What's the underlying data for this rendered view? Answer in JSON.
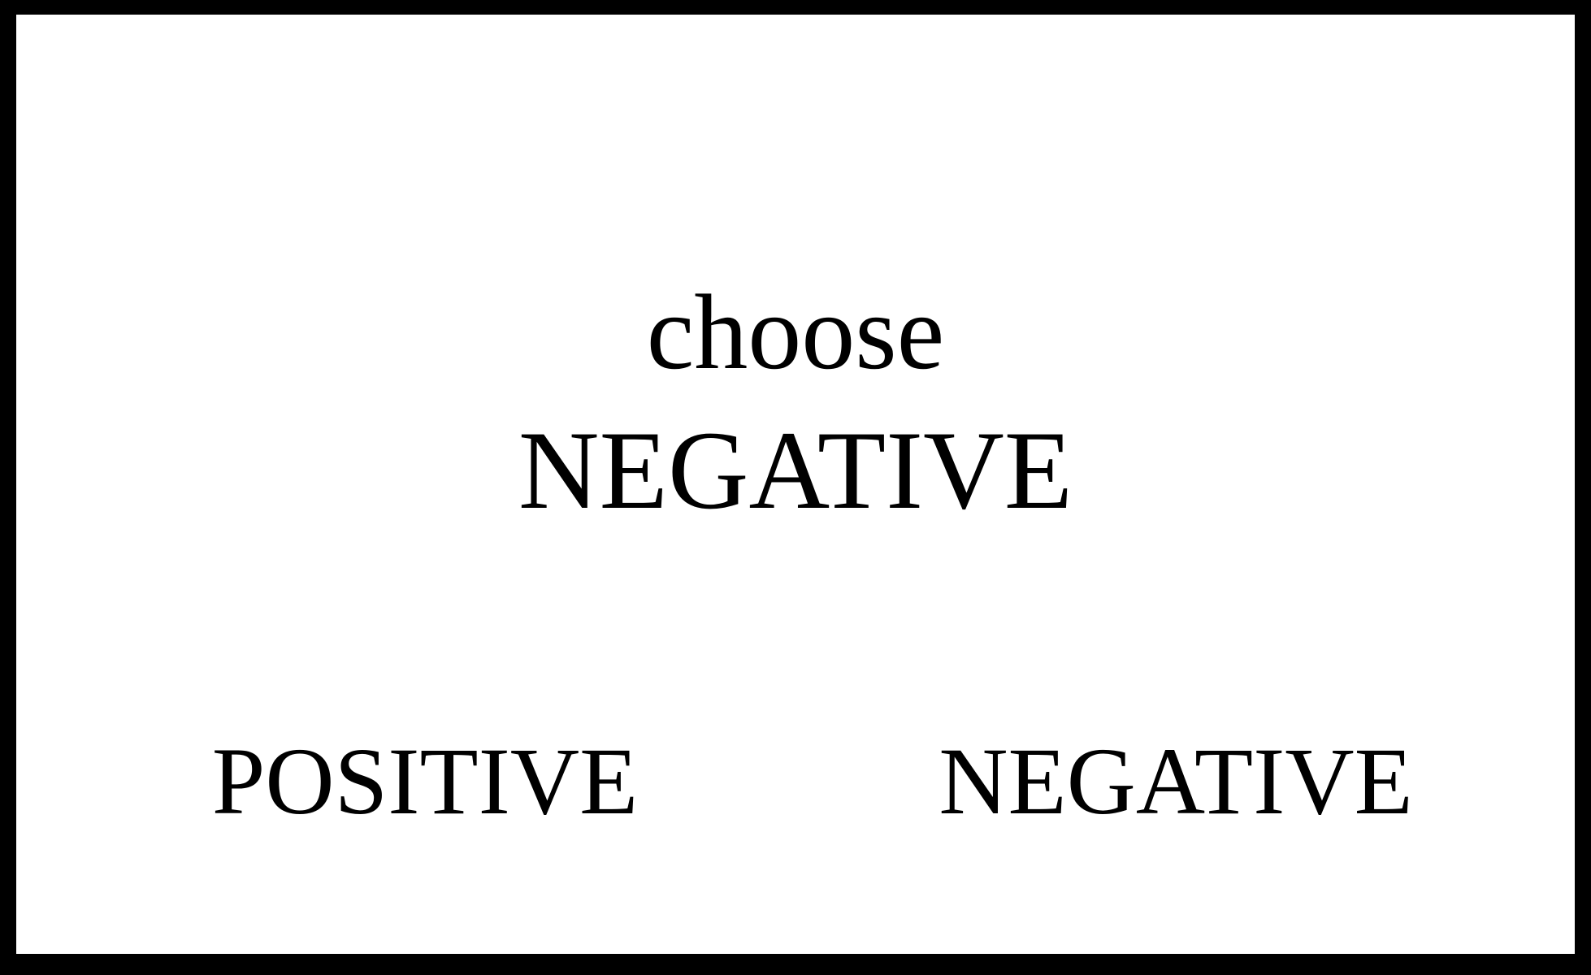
{
  "task": {
    "instruction_verb": "choose",
    "target_word": "NEGATIVE"
  },
  "options": [
    {
      "label": "POSITIVE"
    },
    {
      "label": "NEGATIVE"
    }
  ],
  "colors": {
    "border": "#000000",
    "background": "#ffffff",
    "text": "#000000"
  }
}
